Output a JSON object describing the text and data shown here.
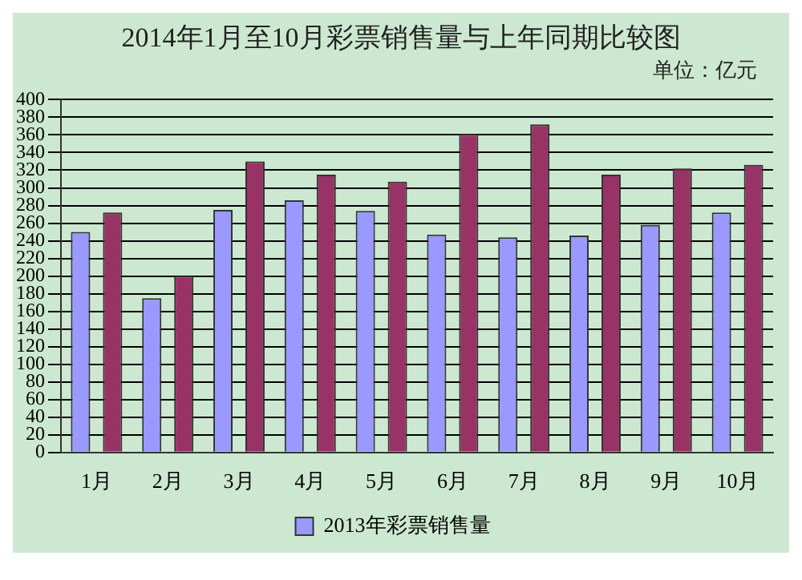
{
  "chart_data": {
    "type": "bar",
    "title": "2014年1月至10月彩票销售量与上年同期比较图",
    "annotations": [
      "单位：亿元"
    ],
    "categories": [
      "1月",
      "2月",
      "3月",
      "4月",
      "5月",
      "6月",
      "7月",
      "8月",
      "9月",
      "10月"
    ],
    "series": [
      {
        "name": "2013年彩票销售量",
        "color": "#9999ff",
        "values": [
          250,
          175,
          275,
          286,
          274,
          247,
          244,
          246,
          258,
          272
        ]
      },
      {
        "color": "#993366",
        "values": [
          272,
          200,
          330,
          315,
          307,
          361,
          372,
          315,
          322,
          326
        ]
      }
    ],
    "ylim": [
      0,
      400
    ],
    "yticks": [
      0,
      20,
      40,
      60,
      80,
      100,
      120,
      140,
      160,
      180,
      200,
      220,
      240,
      260,
      280,
      300,
      320,
      340,
      360,
      380,
      400
    ],
    "grid": "y",
    "legend": "bottom"
  }
}
